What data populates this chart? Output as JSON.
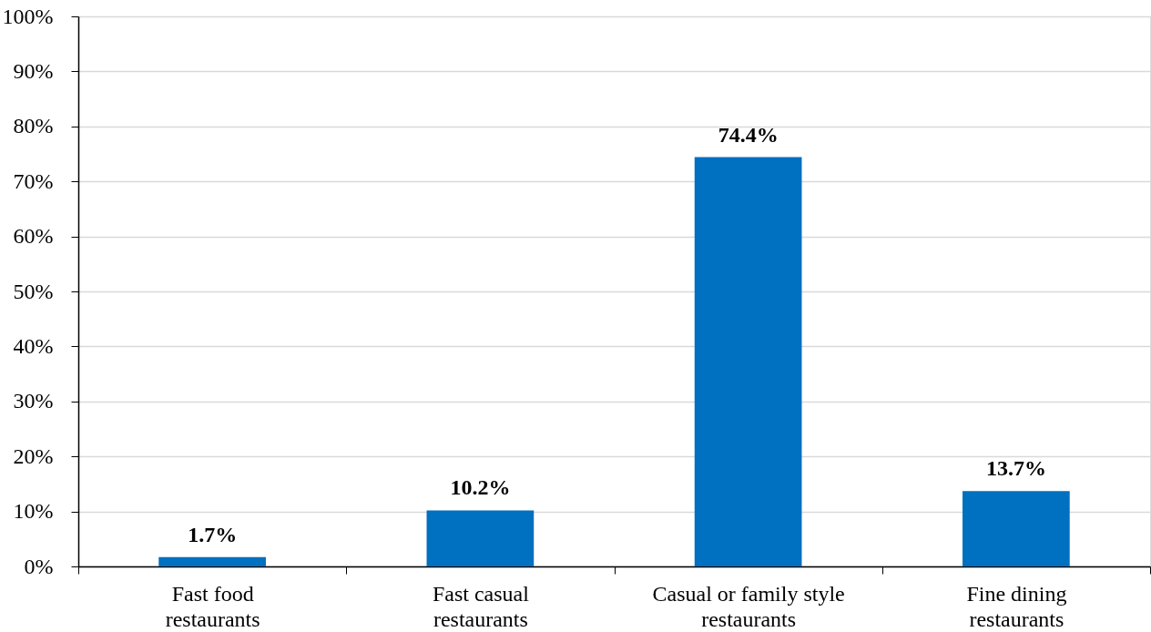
{
  "chart_data": {
    "type": "bar",
    "categories": [
      "Fast food restaurants",
      "Fast casual restaurants",
      "Casual or family style restaurants",
      "Fine dining restaurants"
    ],
    "values": [
      1.7,
      10.2,
      74.4,
      13.7
    ],
    "value_labels": [
      "1.7%",
      "10.2%",
      "74.4%",
      "13.7%"
    ],
    "color": "#0070c0",
    "ylim": [
      0,
      100
    ],
    "yticks": [
      {
        "value": 0,
        "label": "0%"
      },
      {
        "value": 10,
        "label": "10%"
      },
      {
        "value": 20,
        "label": "20%"
      },
      {
        "value": 30,
        "label": "30%"
      },
      {
        "value": 40,
        "label": "40%"
      },
      {
        "value": 50,
        "label": "50%"
      },
      {
        "value": 60,
        "label": "60%"
      },
      {
        "value": 70,
        "label": "70%"
      },
      {
        "value": 80,
        "label": "80%"
      },
      {
        "value": 90,
        "label": "90%"
      },
      {
        "value": 100,
        "label": "100%"
      }
    ],
    "grid": "y"
  }
}
